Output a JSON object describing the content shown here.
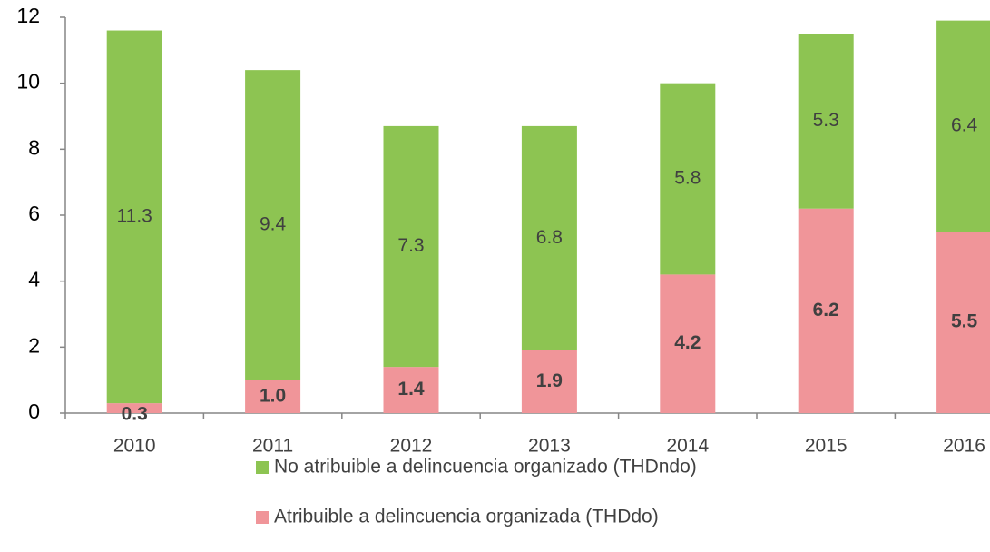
{
  "chart_data": {
    "type": "stacked_bar",
    "categories": [
      "2010",
      "2011",
      "2012",
      "2013",
      "2014",
      "2015",
      "2016"
    ],
    "series": [
      {
        "name": "No atribuible a delincuencia organizado (THDndo)",
        "color": "#8dc452",
        "values": [
          11.3,
          9.4,
          7.3,
          6.8,
          5.8,
          5.3,
          6.4
        ],
        "value_labels": [
          "11.3",
          "9.4",
          "7.3",
          "6.8",
          "5.8",
          "5.3",
          "6.4"
        ]
      },
      {
        "name": "Atribuible a delincuencia organizada (THDdo)",
        "color": "#f09599",
        "values": [
          0.3,
          1,
          1.4,
          1.9,
          4.2,
          6.2,
          5.5
        ],
        "value_labels": [
          "0.3",
          "1.0",
          "1.4",
          "1.9",
          "4.2",
          "6.2",
          "5.5"
        ]
      }
    ],
    "ylim": [
      0,
      12
    ],
    "yticks": [
      0,
      2,
      4,
      6,
      8,
      10,
      12
    ],
    "grid": false
  }
}
